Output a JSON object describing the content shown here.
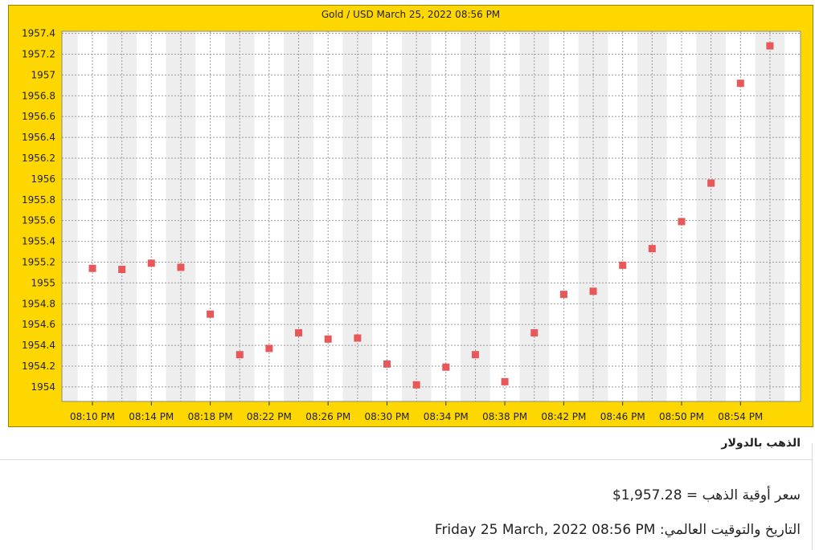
{
  "chart_data": {
    "type": "scatter",
    "title": "Gold / USD March 25, 2022 08:56 PM",
    "x": [
      "08:10 PM",
      "08:12 PM",
      "08:14 PM",
      "08:16 PM",
      "08:18 PM",
      "08:20 PM",
      "08:22 PM",
      "08:24 PM",
      "08:26 PM",
      "08:28 PM",
      "08:30 PM",
      "08:32 PM",
      "08:34 PM",
      "08:36 PM",
      "08:38 PM",
      "08:40 PM",
      "08:42 PM",
      "08:44 PM",
      "08:46 PM",
      "08:48 PM",
      "08:50 PM",
      "08:52 PM",
      "08:54 PM",
      "08:56 PM"
    ],
    "y": [
      1955.14,
      1955.13,
      1955.19,
      1955.15,
      1954.7,
      1954.31,
      1954.37,
      1954.52,
      1954.46,
      1954.47,
      1954.22,
      1954.02,
      1954.19,
      1954.31,
      1954.05,
      1954.52,
      1954.89,
      1954.92,
      1955.17,
      1955.33,
      1955.59,
      1955.96,
      1956.92,
      1957.28
    ],
    "xtick_labels": [
      "08:10 PM",
      "08:14 PM",
      "08:18 PM",
      "08:22 PM",
      "08:26 PM",
      "08:30 PM",
      "08:34 PM",
      "08:38 PM",
      "08:42 PM",
      "08:46 PM",
      "08:50 PM",
      "08:54 PM"
    ],
    "ytick_labels": [
      "1957.4",
      "1957.2",
      "1957",
      "1956.8",
      "1956.6",
      "1956.4",
      "1956.2",
      "1956",
      "1955.8",
      "1955.6",
      "1955.4",
      "1955.2",
      "1955",
      "1954.8",
      "1954.6",
      "1954.4",
      "1954.2",
      "1954"
    ],
    "ytick_values": [
      1957.4,
      1957.2,
      1957.0,
      1956.8,
      1956.6,
      1956.4,
      1956.2,
      1956.0,
      1955.8,
      1955.6,
      1955.4,
      1955.2,
      1955.0,
      1954.8,
      1954.6,
      1954.4,
      1954.2,
      1954.0
    ],
    "ylim": [
      1953.86,
      1957.42
    ],
    "grid": true,
    "xlabel": "",
    "ylabel": ""
  },
  "colors": {
    "frame_background": "#ffd700",
    "plot_background": "#ffffff",
    "alt_band": "#eeeeee",
    "grid": "#9a9a9a",
    "marker": "#e8575a"
  },
  "info": {
    "heading": "الذهب بالدولار",
    "price_label": "سعر أوقية الذهب =",
    "price_value": "$1,957.28",
    "date_label": "التاريخ والتوقيت العالمي:",
    "date_value": "Friday 25 March, 2022 08:56 PM"
  }
}
